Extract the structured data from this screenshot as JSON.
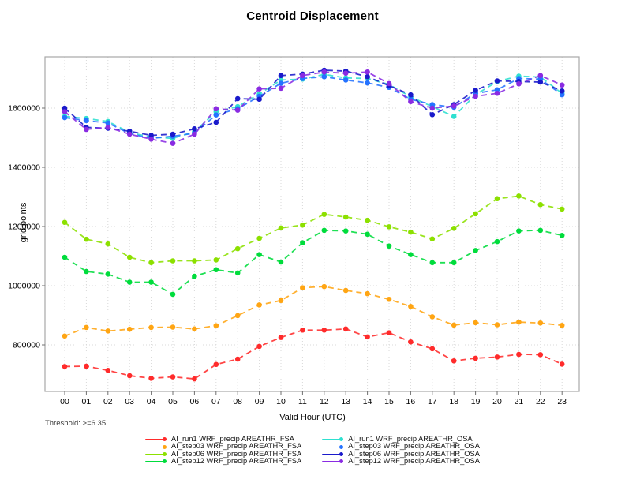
{
  "page": {
    "title": "Centroid Displacement",
    "threshold_note": "Threshold: >=6.35"
  },
  "chart_data": {
    "type": "line",
    "title": "Centroid Displacement",
    "xlabel": "Valid Hour (UTC)",
    "ylabel": "grid points",
    "x_ticks": [
      "00",
      "01",
      "02",
      "03",
      "04",
      "05",
      "06",
      "07",
      "08",
      "09",
      "10",
      "11",
      "12",
      "13",
      "14",
      "15",
      "16",
      "17",
      "18",
      "19",
      "20",
      "21",
      "22",
      "23"
    ],
    "y_ticks": [
      800000,
      1000000,
      1200000,
      1400000,
      1600000
    ],
    "ylim": [
      642000,
      1773000
    ],
    "grid": true,
    "legend_position": "bottom",
    "line_style": "dashed-with-circle-markers",
    "series": [
      {
        "name": "AI_run1 WRF_precip AREATHR_FSA",
        "color": "#FF2B2B",
        "values": [
          727000,
          728000,
          714000,
          696000,
          687000,
          692000,
          685000,
          734000,
          752000,
          795000,
          825000,
          850000,
          850000,
          854000,
          827000,
          841000,
          810000,
          787000,
          746000,
          755000,
          759000,
          768000,
          767000,
          735000
        ]
      },
      {
        "name": "AI_step03 WRF_precip AREATHR_FSA",
        "color": "#FFA513",
        "values": [
          830000,
          859000,
          847000,
          853000,
          859000,
          860000,
          854000,
          865000,
          899000,
          935000,
          950000,
          993000,
          997000,
          984000,
          973000,
          954000,
          930000,
          895000,
          867000,
          875000,
          868000,
          877000,
          874000,
          866000
        ]
      },
      {
        "name": "AI_step06 WRF_precip AREATHR_FSA",
        "color": "#8CE000",
        "values": [
          1214000,
          1157000,
          1141000,
          1096000,
          1078000,
          1084000,
          1084000,
          1087000,
          1125000,
          1160000,
          1195000,
          1205000,
          1241000,
          1232000,
          1221000,
          1199000,
          1181000,
          1158000,
          1194000,
          1243000,
          1294000,
          1303000,
          1274000,
          1259000
        ]
      },
      {
        "name": "AI_step12 WRF_precip AREATHR_FSA",
        "color": "#00DC3C",
        "values": [
          1096000,
          1048000,
          1039000,
          1012000,
          1012000,
          971000,
          1032000,
          1054000,
          1043000,
          1105000,
          1080000,
          1145000,
          1187000,
          1185000,
          1174000,
          1134000,
          1105000,
          1078000,
          1078000,
          1119000,
          1149000,
          1185000,
          1187000,
          1170000
        ]
      },
      {
        "name": "AI_run1 WRF_precip AREATHR_OSA",
        "color": "#2FE0D0",
        "values": [
          1572000,
          1565000,
          1555000,
          1518000,
          1502000,
          1498000,
          1520000,
          1588000,
          1605000,
          1648000,
          1695000,
          1698000,
          1714000,
          1702000,
          1700000,
          1680000,
          1638000,
          1605000,
          1572000,
          1645000,
          1690000,
          1708000,
          1705000,
          1650000
        ]
      },
      {
        "name": "AI_step03 WRF_precip AREATHR_OSA",
        "color": "#2472FF",
        "values": [
          1568000,
          1558000,
          1550000,
          1514000,
          1498000,
          1505000,
          1515000,
          1577000,
          1598000,
          1640000,
          1684000,
          1700000,
          1706000,
          1695000,
          1685000,
          1670000,
          1630000,
          1612000,
          1603000,
          1650000,
          1662000,
          1700000,
          1698000,
          1645000
        ]
      },
      {
        "name": "AI_step06 WRF_precip AREATHR_OSA",
        "color": "#1A1ACB",
        "values": [
          1600000,
          1535000,
          1532000,
          1522000,
          1508000,
          1512000,
          1530000,
          1552000,
          1632000,
          1630000,
          1710000,
          1715000,
          1728000,
          1725000,
          1706000,
          1676000,
          1645000,
          1578000,
          1612000,
          1660000,
          1692000,
          1690000,
          1688000,
          1658000
        ]
      },
      {
        "name": "AI_step12 WRF_precip AREATHR_OSA",
        "color": "#8A2BE2",
        "values": [
          1588000,
          1528000,
          1535000,
          1512000,
          1495000,
          1481000,
          1512000,
          1598000,
          1593000,
          1665000,
          1667000,
          1710000,
          1722000,
          1718000,
          1722000,
          1683000,
          1622000,
          1600000,
          1607000,
          1640000,
          1650000,
          1682000,
          1710000,
          1678000
        ]
      }
    ]
  },
  "style": {
    "grid_color": "#d8d8d8",
    "border_color": "#a8a8a8",
    "tick_color": "#707070",
    "text_color": "#000000"
  }
}
